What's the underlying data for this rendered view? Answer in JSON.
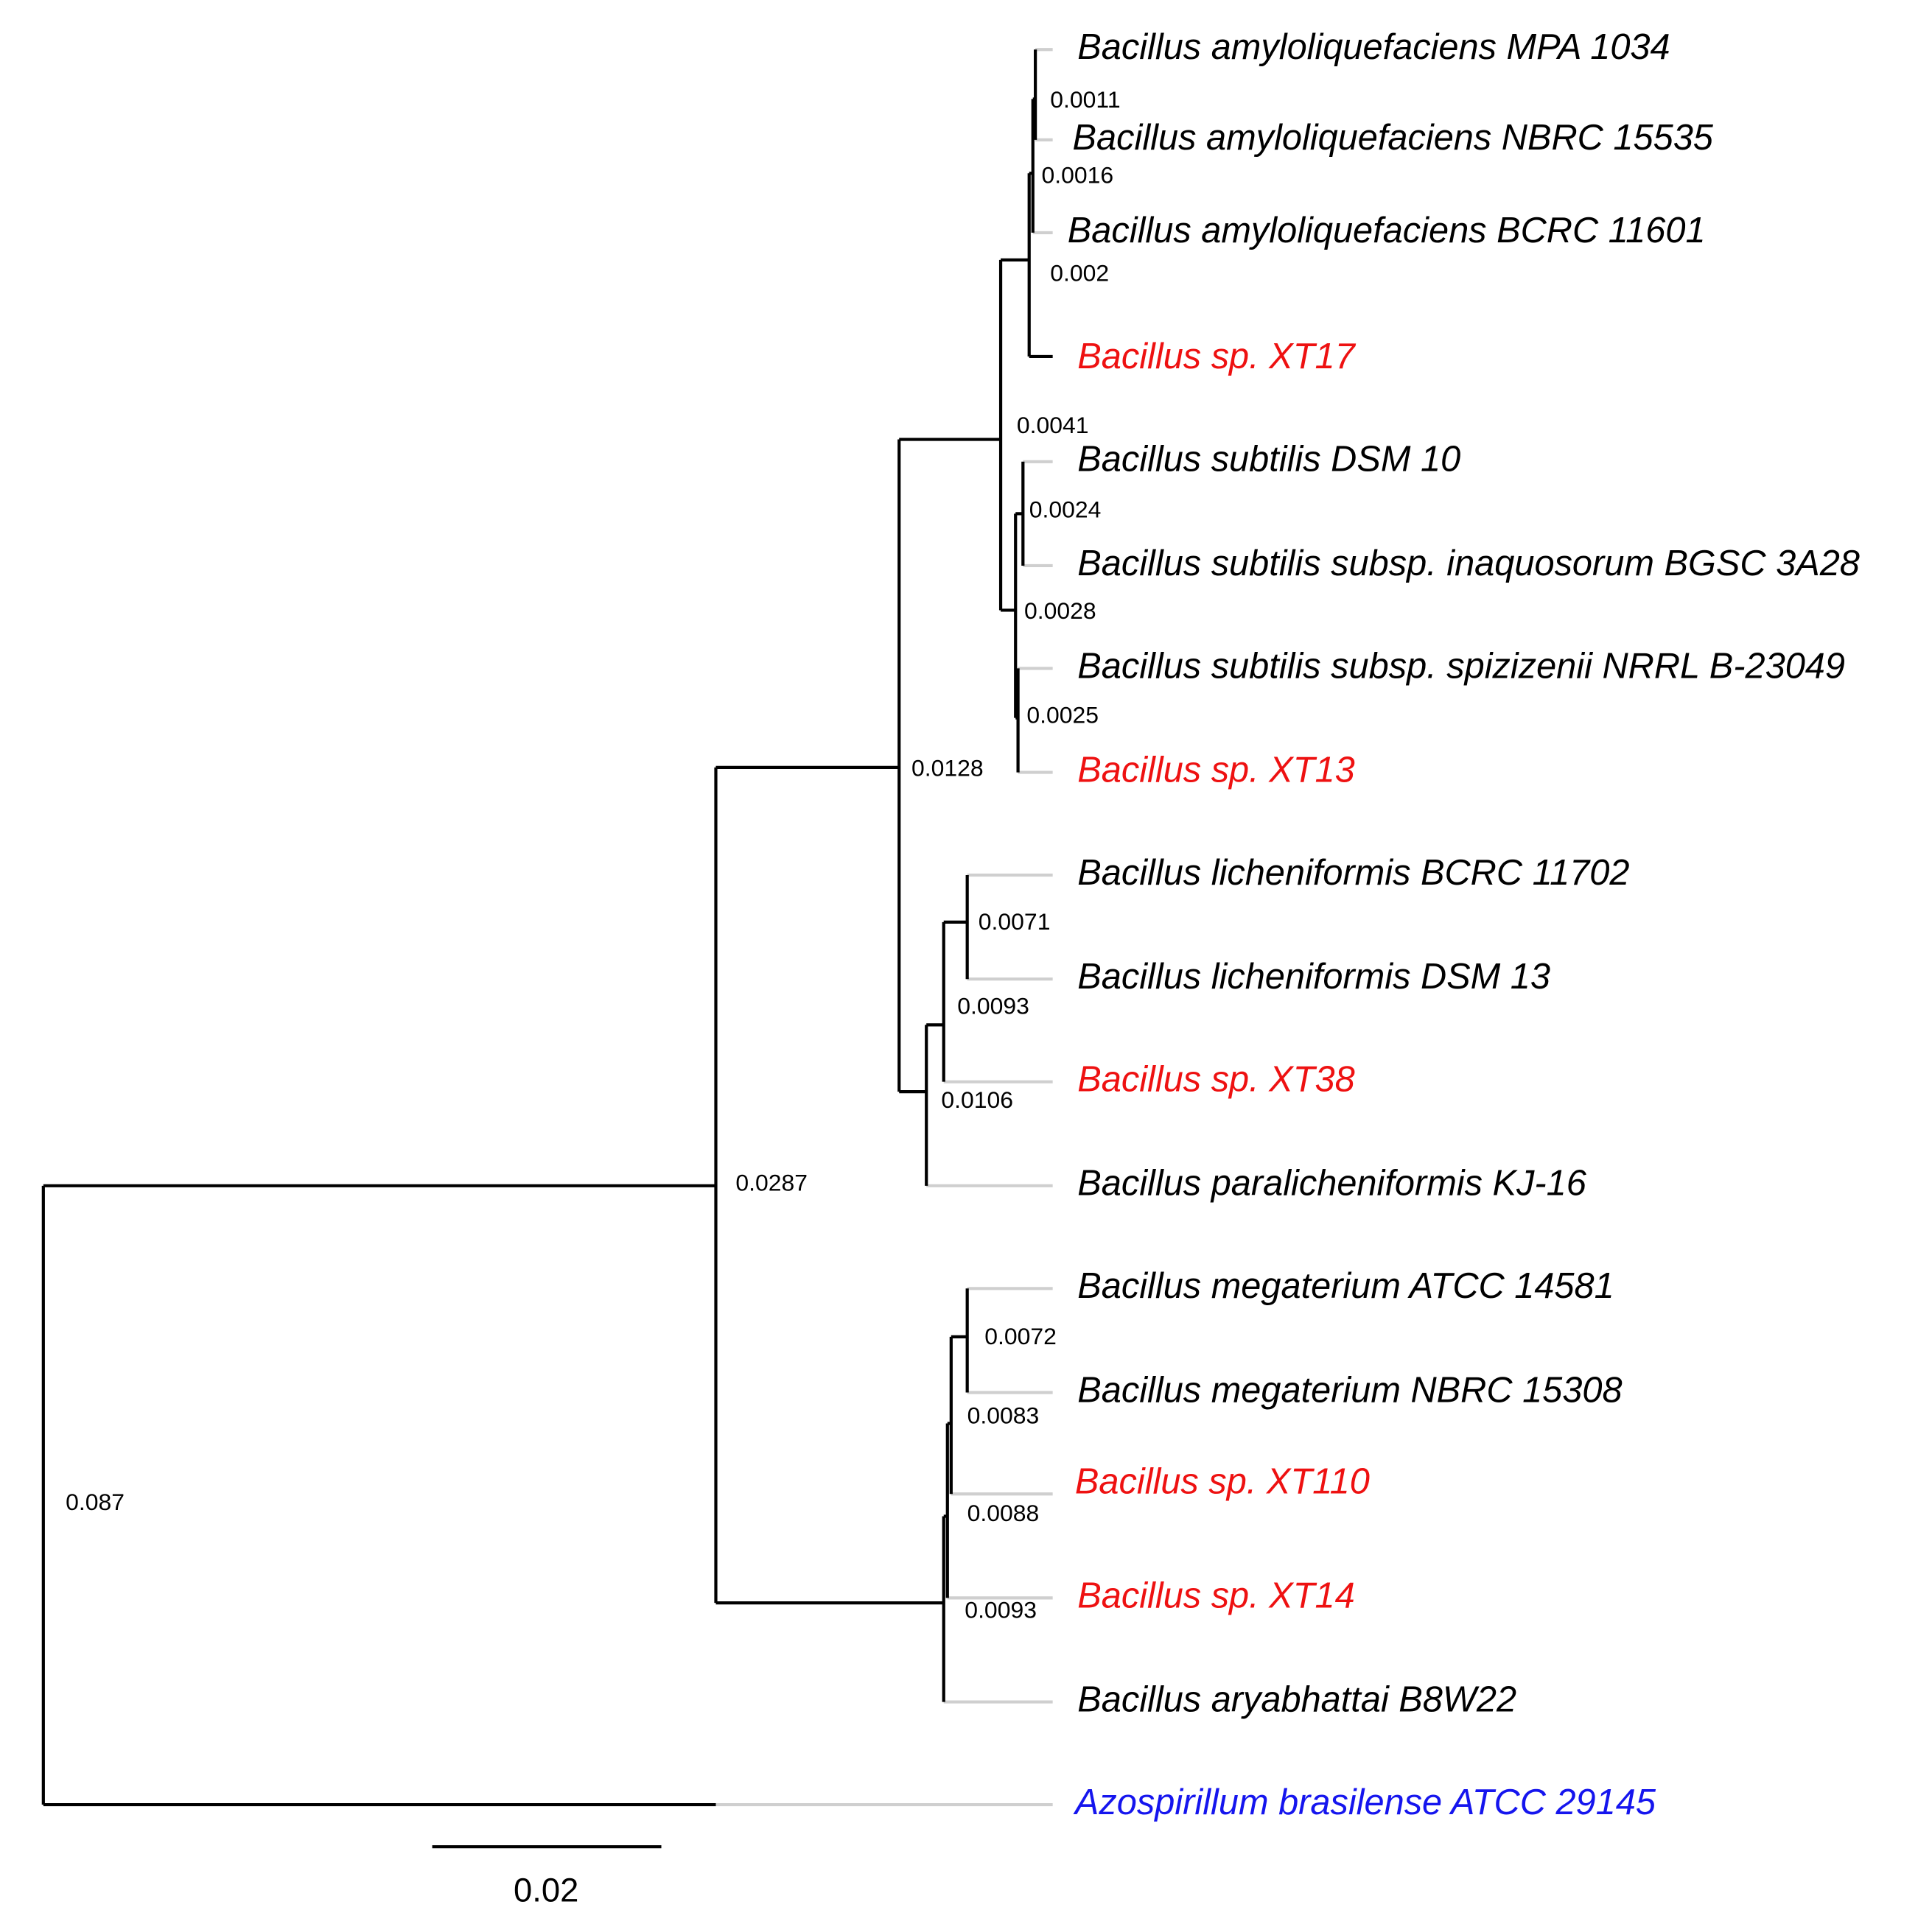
{
  "leaves": [
    {
      "label": "Bacillus amyloliquefaciens MPA 1034"
    },
    {
      "label": "Bacillus amyloliquefaciens NBRC 15535"
    },
    {
      "label": "Bacillus amyloliquefaciens BCRC 11601"
    },
    {
      "label": "Bacillus sp. XT17"
    },
    {
      "label": "Bacillus subtilis DSM 10"
    },
    {
      "label": "Bacillus subtilis subsp. inaquosorum BGSC 3A28"
    },
    {
      "label": "Bacillus subtilis subsp. spizizenii NRRL B-23049"
    },
    {
      "label": "Bacillus sp. XT13"
    },
    {
      "label": "Bacillus licheniformis BCRC 11702"
    },
    {
      "label": "Bacillus licheniformis DSM 13"
    },
    {
      "label": "Bacillus sp. XT38"
    },
    {
      "label": "Bacillus paralicheniformis KJ-16"
    },
    {
      "label": "Bacillus megaterium ATCC 14581"
    },
    {
      "label": "Bacillus megaterium NBRC 15308"
    },
    {
      "label": "Bacillus sp. XT110"
    },
    {
      "label": "Bacillus sp. XT14"
    },
    {
      "label": "Bacillus aryabhattai B8W22"
    },
    {
      "label": "Azospirillum brasilense ATCC 29145"
    }
  ],
  "branch_labels": [
    "0.0011",
    "0.0016",
    "0.002",
    "0.0041",
    "0.0024",
    "0.0028",
    "0.0025",
    "0.0128",
    "0.0071",
    "0.0093",
    "0.0106",
    "0.0287",
    "0.0072",
    "0.0083",
    "0.0088",
    "0.0093",
    "0.087"
  ],
  "scale_bar": {
    "label": "0.02"
  }
}
